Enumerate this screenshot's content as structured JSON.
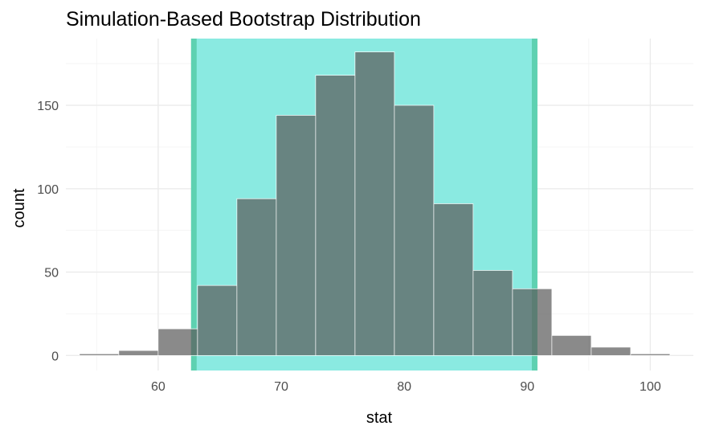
{
  "chart_data": {
    "type": "bar",
    "title": "Simulation-Based Bootstrap Distribution",
    "xlabel": "stat",
    "ylabel": "count",
    "xlim": [
      52.5,
      103.5
    ],
    "ylim": [
      -9,
      190
    ],
    "x_ticks": [
      60,
      70,
      80,
      90,
      100
    ],
    "y_ticks": [
      0,
      50,
      100,
      150
    ],
    "bin_width": 3.2,
    "bins": [
      {
        "x0": 53.6,
        "x1": 56.8,
        "count": 1
      },
      {
        "x0": 56.8,
        "x1": 60.0,
        "count": 3
      },
      {
        "x0": 60.0,
        "x1": 63.2,
        "count": 16
      },
      {
        "x0": 63.2,
        "x1": 66.4,
        "count": 42
      },
      {
        "x0": 66.4,
        "x1": 69.6,
        "count": 94
      },
      {
        "x0": 69.6,
        "x1": 72.8,
        "count": 144
      },
      {
        "x0": 72.8,
        "x1": 76.0,
        "count": 168
      },
      {
        "x0": 76.0,
        "x1": 79.2,
        "count": 182
      },
      {
        "x0": 79.2,
        "x1": 82.4,
        "count": 150
      },
      {
        "x0": 82.4,
        "x1": 85.6,
        "count": 91
      },
      {
        "x0": 85.6,
        "x1": 88.8,
        "count": 51
      },
      {
        "x0": 88.8,
        "x1": 92.0,
        "count": 40
      },
      {
        "x0": 92.0,
        "x1": 95.2,
        "count": 12
      },
      {
        "x0": 95.2,
        "x1": 98.4,
        "count": 5
      },
      {
        "x0": 98.4,
        "x1": 101.6,
        "count": 1
      }
    ],
    "shaded_interval": [
      62.9,
      90.6
    ],
    "grid": true,
    "colors": {
      "bar": "#5a5a5a",
      "shade_fill": "#8aeae1",
      "shade_border": "#5ed1b1",
      "bar_in_shade": "#49a99e"
    }
  }
}
